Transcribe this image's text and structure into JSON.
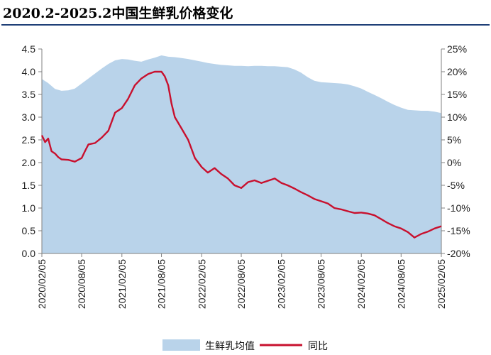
{
  "title": "2020.2-2025.2中国生鲜乳价格变化",
  "colors": {
    "area": "#b9d3ea",
    "line": "#c8102e",
    "axis": "#808080",
    "title_rule": "#1f3f77"
  },
  "chart_data": {
    "type": "area+line",
    "title": "2020.2-2025.2中国生鲜乳价格变化",
    "x_tick_labels": [
      "2020/02/05",
      "2020/08/05",
      "2021/02/05",
      "2021/08/05",
      "2022/02/05",
      "2022/08/05",
      "2023/02/05",
      "2023/08/05",
      "2024/02/05",
      "2024/08/05",
      "2025/02/05"
    ],
    "x_range": [
      "2020/02/05",
      "2025/02/05"
    ],
    "y_left": {
      "ticks": [
        "0.0",
        "0.5",
        "1.0",
        "1.5",
        "2.0",
        "2.5",
        "3.0",
        "3.5",
        "4.0",
        "4.5"
      ],
      "range": [
        0,
        4.5
      ]
    },
    "y_right": {
      "ticks": [
        "25%",
        "20%",
        "15%",
        "10%",
        "5%",
        "0%",
        "-5%",
        "-10%",
        "-15%",
        "-20%"
      ],
      "range": [
        -20,
        25
      ],
      "unit": "%"
    },
    "legend_position": "bottom",
    "series": [
      {
        "name": "生鲜乳均值",
        "type": "area",
        "axis": "left",
        "x": [
          "2020/02/05",
          "2020/03/05",
          "2020/04/05",
          "2020/05/05",
          "2020/06/05",
          "2020/07/05",
          "2020/08/05",
          "2020/09/05",
          "2020/10/05",
          "2020/11/05",
          "2020/12/05",
          "2021/01/05",
          "2021/02/05",
          "2021/03/05",
          "2021/04/05",
          "2021/05/05",
          "2021/06/05",
          "2021/07/05",
          "2021/08/05",
          "2021/09/05",
          "2021/10/05",
          "2021/11/05",
          "2021/12/05",
          "2022/01/05",
          "2022/02/05",
          "2022/03/05",
          "2022/04/05",
          "2022/05/05",
          "2022/06/05",
          "2022/07/05",
          "2022/08/05",
          "2022/09/05",
          "2022/10/05",
          "2022/11/05",
          "2022/12/05",
          "2023/01/05",
          "2023/02/05",
          "2023/03/05",
          "2023/04/05",
          "2023/05/05",
          "2023/06/05",
          "2023/07/05",
          "2023/08/05",
          "2023/09/05",
          "2023/10/05",
          "2023/11/05",
          "2023/12/05",
          "2024/01/05",
          "2024/02/05",
          "2024/03/05",
          "2024/04/05",
          "2024/05/05",
          "2024/06/05",
          "2024/07/05",
          "2024/08/05",
          "2024/09/05",
          "2024/10/05",
          "2024/11/05",
          "2024/12/05",
          "2025/01/05",
          "2025/02/05"
        ],
        "values": [
          3.84,
          3.75,
          3.62,
          3.58,
          3.59,
          3.63,
          3.74,
          3.85,
          3.96,
          4.07,
          4.17,
          4.25,
          4.28,
          4.27,
          4.24,
          4.22,
          4.27,
          4.31,
          4.36,
          4.33,
          4.32,
          4.3,
          4.28,
          4.25,
          4.22,
          4.19,
          4.17,
          4.15,
          4.14,
          4.13,
          4.13,
          4.12,
          4.13,
          4.13,
          4.12,
          4.12,
          4.11,
          4.1,
          4.05,
          3.98,
          3.88,
          3.8,
          3.77,
          3.76,
          3.75,
          3.74,
          3.72,
          3.68,
          3.63,
          3.56,
          3.49,
          3.42,
          3.34,
          3.27,
          3.21,
          3.16,
          3.15,
          3.14,
          3.14,
          3.12,
          3.09
        ]
      },
      {
        "name": "同比",
        "type": "line",
        "axis": "right",
        "x": [
          "2020/02/05",
          "2020/02/20",
          "2020/03/05",
          "2020/03/20",
          "2020/04/05",
          "2020/04/20",
          "2020/05/05",
          "2020/06/05",
          "2020/07/05",
          "2020/08/05",
          "2020/08/20",
          "2020/09/05",
          "2020/10/05",
          "2020/11/05",
          "2020/12/05",
          "2021/01/05",
          "2021/02/05",
          "2021/03/05",
          "2021/04/05",
          "2021/05/05",
          "2021/06/05",
          "2021/07/05",
          "2021/08/05",
          "2021/08/20",
          "2021/09/05",
          "2021/09/20",
          "2021/10/05",
          "2021/11/05",
          "2021/12/05",
          "2022/01/05",
          "2022/02/05",
          "2022/03/05",
          "2022/04/05",
          "2022/05/05",
          "2022/06/05",
          "2022/07/05",
          "2022/08/05",
          "2022/09/05",
          "2022/10/05",
          "2022/11/05",
          "2022/12/05",
          "2023/01/05",
          "2023/02/05",
          "2023/03/05",
          "2023/04/05",
          "2023/05/05",
          "2023/06/05",
          "2023/07/05",
          "2023/08/05",
          "2023/09/05",
          "2023/10/05",
          "2023/11/05",
          "2023/12/05",
          "2024/01/05",
          "2024/02/05",
          "2024/03/05",
          "2024/04/05",
          "2024/05/05",
          "2024/06/05",
          "2024/07/05",
          "2024/08/05",
          "2024/09/05",
          "2024/10/05",
          "2024/11/05",
          "2024/12/05",
          "2025/01/05",
          "2025/02/05"
        ],
        "values": [
          6.0,
          4.5,
          5.3,
          2.5,
          2.0,
          1.2,
          0.7,
          0.6,
          0.2,
          1.0,
          2.5,
          4.0,
          4.3,
          5.5,
          7.0,
          11.0,
          12.0,
          14.0,
          17.0,
          18.5,
          19.5,
          20.0,
          20.0,
          19.0,
          17.0,
          13.0,
          10.0,
          7.5,
          5.0,
          1.0,
          -1.0,
          -2.2,
          -1.2,
          -2.5,
          -3.5,
          -5.0,
          -5.6,
          -4.3,
          -3.9,
          -4.5,
          -4.0,
          -3.5,
          -4.5,
          -5.0,
          -5.7,
          -6.5,
          -7.2,
          -8.0,
          -8.5,
          -9.0,
          -10.0,
          -10.3,
          -10.7,
          -11.1,
          -11.0,
          -11.2,
          -11.6,
          -12.4,
          -13.3,
          -14.0,
          -14.5,
          -15.3,
          -16.5,
          -15.7,
          -15.2,
          -14.5,
          -14.0
        ]
      }
    ]
  }
}
